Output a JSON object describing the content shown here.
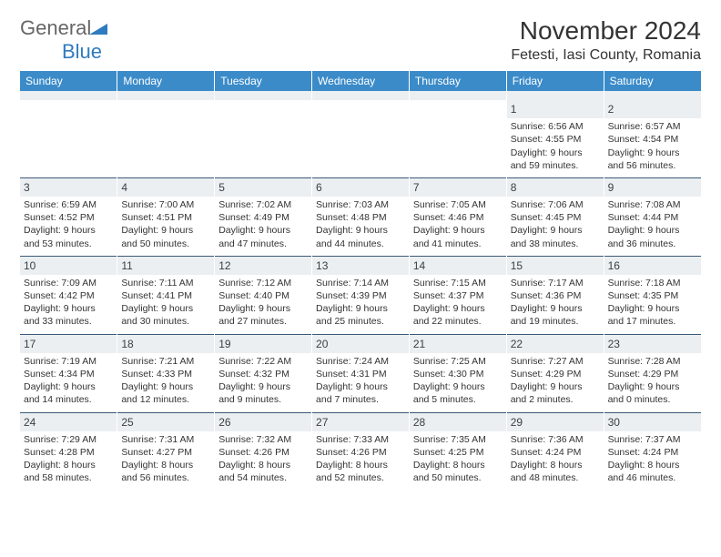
{
  "brand": {
    "part1": "General",
    "part2": "Blue"
  },
  "title": "November 2024",
  "location": "Fetesti, Iasi County, Romania",
  "colors": {
    "header_bg": "#3b8bc9",
    "header_text": "#ffffff",
    "daynum_bg": "#eceff1",
    "daynum_border": "#3b5a78",
    "body_text": "#333333",
    "logo_gray": "#666666",
    "logo_blue": "#2f7bbf"
  },
  "font": {
    "title_size": 28,
    "location_size": 16,
    "header_size": 12,
    "cell_size": 10.5
  },
  "day_labels": [
    "Sunday",
    "Monday",
    "Tuesday",
    "Wednesday",
    "Thursday",
    "Friday",
    "Saturday"
  ],
  "weeks": [
    [
      null,
      null,
      null,
      null,
      null,
      {
        "n": "1",
        "sunrise": "6:56 AM",
        "sunset": "4:55 PM",
        "day_h": "9",
        "day_m": "59"
      },
      {
        "n": "2",
        "sunrise": "6:57 AM",
        "sunset": "4:54 PM",
        "day_h": "9",
        "day_m": "56"
      }
    ],
    [
      {
        "n": "3",
        "sunrise": "6:59 AM",
        "sunset": "4:52 PM",
        "day_h": "9",
        "day_m": "53"
      },
      {
        "n": "4",
        "sunrise": "7:00 AM",
        "sunset": "4:51 PM",
        "day_h": "9",
        "day_m": "50"
      },
      {
        "n": "5",
        "sunrise": "7:02 AM",
        "sunset": "4:49 PM",
        "day_h": "9",
        "day_m": "47"
      },
      {
        "n": "6",
        "sunrise": "7:03 AM",
        "sunset": "4:48 PM",
        "day_h": "9",
        "day_m": "44"
      },
      {
        "n": "7",
        "sunrise": "7:05 AM",
        "sunset": "4:46 PM",
        "day_h": "9",
        "day_m": "41"
      },
      {
        "n": "8",
        "sunrise": "7:06 AM",
        "sunset": "4:45 PM",
        "day_h": "9",
        "day_m": "38"
      },
      {
        "n": "9",
        "sunrise": "7:08 AM",
        "sunset": "4:44 PM",
        "day_h": "9",
        "day_m": "36"
      }
    ],
    [
      {
        "n": "10",
        "sunrise": "7:09 AM",
        "sunset": "4:42 PM",
        "day_h": "9",
        "day_m": "33"
      },
      {
        "n": "11",
        "sunrise": "7:11 AM",
        "sunset": "4:41 PM",
        "day_h": "9",
        "day_m": "30"
      },
      {
        "n": "12",
        "sunrise": "7:12 AM",
        "sunset": "4:40 PM",
        "day_h": "9",
        "day_m": "27"
      },
      {
        "n": "13",
        "sunrise": "7:14 AM",
        "sunset": "4:39 PM",
        "day_h": "9",
        "day_m": "25"
      },
      {
        "n": "14",
        "sunrise": "7:15 AM",
        "sunset": "4:37 PM",
        "day_h": "9",
        "day_m": "22"
      },
      {
        "n": "15",
        "sunrise": "7:17 AM",
        "sunset": "4:36 PM",
        "day_h": "9",
        "day_m": "19"
      },
      {
        "n": "16",
        "sunrise": "7:18 AM",
        "sunset": "4:35 PM",
        "day_h": "9",
        "day_m": "17"
      }
    ],
    [
      {
        "n": "17",
        "sunrise": "7:19 AM",
        "sunset": "4:34 PM",
        "day_h": "9",
        "day_m": "14"
      },
      {
        "n": "18",
        "sunrise": "7:21 AM",
        "sunset": "4:33 PM",
        "day_h": "9",
        "day_m": "12"
      },
      {
        "n": "19",
        "sunrise": "7:22 AM",
        "sunset": "4:32 PM",
        "day_h": "9",
        "day_m": "9"
      },
      {
        "n": "20",
        "sunrise": "7:24 AM",
        "sunset": "4:31 PM",
        "day_h": "9",
        "day_m": "7"
      },
      {
        "n": "21",
        "sunrise": "7:25 AM",
        "sunset": "4:30 PM",
        "day_h": "9",
        "day_m": "5"
      },
      {
        "n": "22",
        "sunrise": "7:27 AM",
        "sunset": "4:29 PM",
        "day_h": "9",
        "day_m": "2"
      },
      {
        "n": "23",
        "sunrise": "7:28 AM",
        "sunset": "4:29 PM",
        "day_h": "9",
        "day_m": "0"
      }
    ],
    [
      {
        "n": "24",
        "sunrise": "7:29 AM",
        "sunset": "4:28 PM",
        "day_h": "8",
        "day_m": "58"
      },
      {
        "n": "25",
        "sunrise": "7:31 AM",
        "sunset": "4:27 PM",
        "day_h": "8",
        "day_m": "56"
      },
      {
        "n": "26",
        "sunrise": "7:32 AM",
        "sunset": "4:26 PM",
        "day_h": "8",
        "day_m": "54"
      },
      {
        "n": "27",
        "sunrise": "7:33 AM",
        "sunset": "4:26 PM",
        "day_h": "8",
        "day_m": "52"
      },
      {
        "n": "28",
        "sunrise": "7:35 AM",
        "sunset": "4:25 PM",
        "day_h": "8",
        "day_m": "50"
      },
      {
        "n": "29",
        "sunrise": "7:36 AM",
        "sunset": "4:24 PM",
        "day_h": "8",
        "day_m": "48"
      },
      {
        "n": "30",
        "sunrise": "7:37 AM",
        "sunset": "4:24 PM",
        "day_h": "8",
        "day_m": "46"
      }
    ]
  ],
  "strings": {
    "sunrise_prefix": "Sunrise: ",
    "sunset_prefix": "Sunset: ",
    "daylight_prefix": "Daylight: ",
    "hours_word": " hours",
    "and_word": "and ",
    "minutes_word": " minutes."
  }
}
